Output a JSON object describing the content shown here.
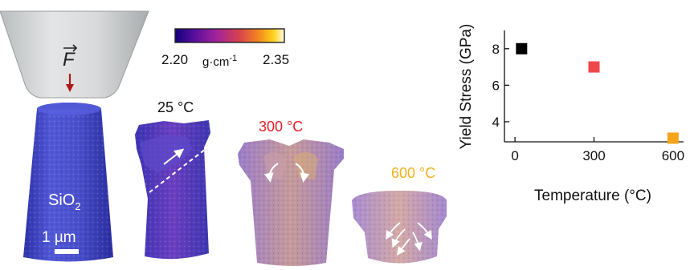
{
  "colorbar": {
    "min_label": "2.20",
    "max_label": "2.35",
    "unit_base": "g·cm",
    "unit_exp": "-1",
    "colors": [
      "#12007a",
      "#5a0e9e",
      "#a2239a",
      "#d6404f",
      "#f4861f",
      "#ffd21a",
      "#fffbe0"
    ]
  },
  "indenter": {
    "force_symbol": "F",
    "arrow_color": "#b01818"
  },
  "pillars": {
    "pristine": {
      "material": "SiO",
      "subscript": "2",
      "scale_label": "1 µm"
    },
    "p25": {
      "label": "25 °C",
      "label_color": "#111111"
    },
    "p300": {
      "label": "300 °C",
      "label_color": "#e8202a"
    },
    "p600": {
      "label": "600 °C",
      "label_color": "#f2b11b"
    }
  },
  "chart_data": {
    "type": "scatter",
    "x": [
      25,
      300,
      600
    ],
    "values": [
      8.0,
      7.0,
      3.1
    ],
    "point_colors": [
      "#000000",
      "#f0474a",
      "#f2a51a"
    ],
    "xlabel": "Temperature (°C)",
    "ylabel": "Yield Stress (GPa)",
    "xticks": [
      0,
      300,
      600
    ],
    "yticks": [
      4,
      6,
      8
    ],
    "xlim": [
      -40,
      640
    ],
    "ylim": [
      2.9,
      9.0
    ],
    "grid": false
  }
}
